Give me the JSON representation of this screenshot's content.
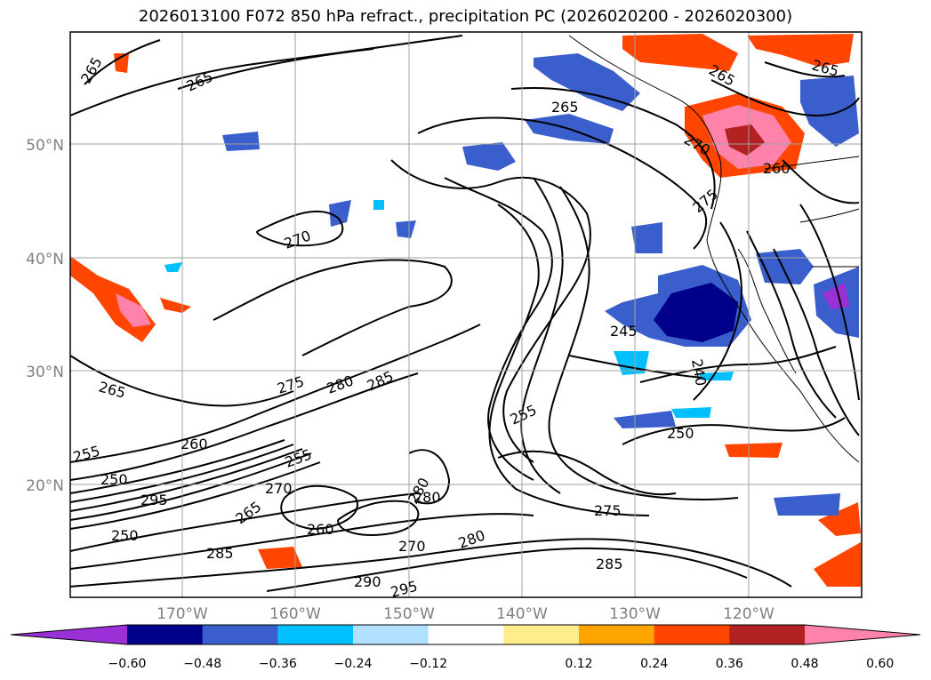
{
  "title": "2026013100 F072 850 hPa refract., precipitation PC (2026020200 - 2026020300)",
  "lat_labels": [
    "50°N",
    "40°N",
    "30°N",
    "20°N"
  ],
  "lon_labels": [
    "170°W",
    "160°W",
    "150°W",
    "140°W",
    "130°W",
    "120°W"
  ],
  "contour_labels": [
    "265",
    "265",
    "265",
    "265",
    "265",
    "265",
    "270",
    "270",
    "270",
    "275",
    "280",
    "285",
    "255",
    "255",
    "260",
    "250",
    "250",
    "295",
    "265",
    "260",
    "285",
    "270",
    "280",
    "290",
    "275",
    "280",
    "285",
    "295",
    "255",
    "245",
    "240",
    "250",
    "275",
    "260",
    "280"
  ],
  "colorbar": {
    "ticks": [
      "−0.60",
      "−0.48",
      "−0.36",
      "−0.24",
      "−0.12",
      "0.12",
      "0.24",
      "0.36",
      "0.48",
      "0.60"
    ],
    "colors": [
      "#9b30d6",
      "#00008b",
      "#3a5fcd",
      "#00bfff",
      "#b0e2ff",
      "#ffffff",
      "#ffec8b",
      "#ffa500",
      "#ff4500",
      "#b22222",
      "#ff82ab"
    ]
  }
}
